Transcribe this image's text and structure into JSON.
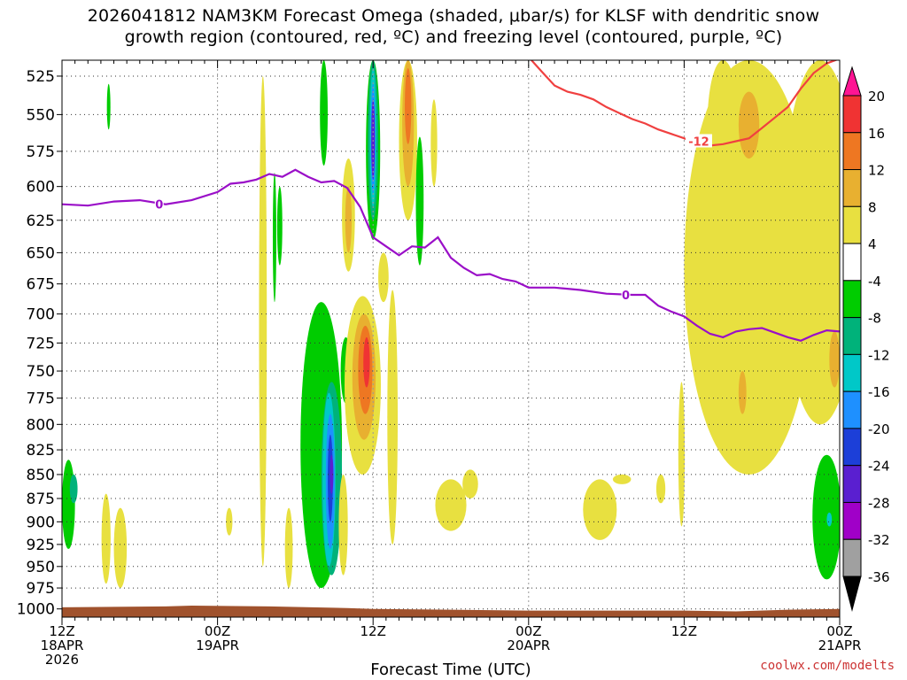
{
  "title": {
    "line1": "2026041812 NAM3KM Forecast Omega (shaded, μbar/s) for KLSF with dendritic snow",
    "line2": "growth region (contoured, red, ºC) and freezing level (contoured, purple, ºC)"
  },
  "credit": "coolwx.com/modelts",
  "chart_data": {
    "type": "time-height cross section",
    "xlabel": "Forecast Time (UTC)",
    "x_unit": "hours from 2026-04-18 12Z",
    "xlim": [
      0,
      60
    ],
    "x_ticks": [
      {
        "x": 0,
        "lines": [
          "12Z",
          "18APR",
          "2026"
        ]
      },
      {
        "x": 12,
        "lines": [
          "00Z",
          "19APR"
        ]
      },
      {
        "x": 24,
        "lines": [
          "12Z"
        ]
      },
      {
        "x": 36,
        "lines": [
          "00Z",
          "20APR"
        ]
      },
      {
        "x": 48,
        "lines": [
          "12Z"
        ]
      },
      {
        "x": 60,
        "lines": [
          "00Z",
          "21APR"
        ]
      }
    ],
    "y_unit": "hPa",
    "ylim": [
      1010,
      515
    ],
    "y_ticks": [
      525,
      550,
      575,
      600,
      625,
      650,
      675,
      700,
      725,
      750,
      775,
      800,
      825,
      850,
      875,
      900,
      925,
      950,
      975,
      1000
    ],
    "grid": true,
    "colorbar": {
      "label_values": [
        20,
        16,
        12,
        8,
        4,
        -4,
        -8,
        -12,
        -16,
        -20,
        -24,
        -28,
        -32,
        -36
      ],
      "bins": [
        {
          "range": [
            20,
            24
          ],
          "color": "#ff1493"
        },
        {
          "range": [
            16,
            20
          ],
          "color": "#f03333"
        },
        {
          "range": [
            12,
            16
          ],
          "color": "#ee7722"
        },
        {
          "range": [
            8,
            12
          ],
          "color": "#e8b030"
        },
        {
          "range": [
            4,
            8
          ],
          "color": "#e8e040"
        },
        {
          "range": [
            -4,
            4
          ],
          "color": "#ffffff"
        },
        {
          "range": [
            -8,
            -4
          ],
          "color": "#00cc00"
        },
        {
          "range": [
            -12,
            -8
          ],
          "color": "#00b27a"
        },
        {
          "range": [
            -16,
            -12
          ],
          "color": "#00c8c8"
        },
        {
          "range": [
            -20,
            -16
          ],
          "color": "#1e90ff"
        },
        {
          "range": [
            -24,
            -20
          ],
          "color": "#1c3fd8"
        },
        {
          "range": [
            -28,
            -24
          ],
          "color": "#5a1fd0"
        },
        {
          "range": [
            -32,
            -28
          ],
          "color": "#a000c8"
        },
        {
          "range": [
            -36,
            -32
          ],
          "color": "#a0a0a0"
        },
        {
          "range": [
            -40,
            -36
          ],
          "color": "#000000"
        }
      ]
    },
    "omega_regions": [
      {
        "x": 0.5,
        "p": [
          930,
          835
        ],
        "w": 0.5,
        "v": -6
      },
      {
        "x": 0.9,
        "p": [
          880,
          850
        ],
        "w": 0.3,
        "v": -8
      },
      {
        "x": 3.6,
        "p": [
          560,
          530
        ],
        "w": 0.12,
        "v": -6
      },
      {
        "x": 3.4,
        "p": [
          970,
          870
        ],
        "w": 0.35,
        "v": 5
      },
      {
        "x": 4.5,
        "p": [
          975,
          885
        ],
        "w": 0.5,
        "v": 5
      },
      {
        "x": 12.9,
        "p": [
          915,
          885
        ],
        "w": 0.25,
        "v": 5
      },
      {
        "x": 15.5,
        "p": [
          950,
          525
        ],
        "w": 0.3,
        "v": 5
      },
      {
        "x": 16.4,
        "p": [
          690,
          590
        ],
        "w": 0.1,
        "v": -6
      },
      {
        "x": 16.8,
        "p": [
          660,
          600
        ],
        "w": 0.2,
        "v": -6
      },
      {
        "x": 17.5,
        "p": [
          975,
          885
        ],
        "w": 0.3,
        "v": 5
      },
      {
        "x": 20.0,
        "p": [
          975,
          690
        ],
        "w": 1.6,
        "v": -6
      },
      {
        "x": 20.8,
        "p": [
          960,
          760
        ],
        "w": 0.8,
        "v": -8
      },
      {
        "x": 20.6,
        "p": [
          950,
          770
        ],
        "w": 0.5,
        "v": -12
      },
      {
        "x": 20.7,
        "p": [
          930,
          790
        ],
        "w": 0.35,
        "v": -16
      },
      {
        "x": 20.7,
        "p": [
          900,
          810
        ],
        "w": 0.2,
        "v": -20
      },
      {
        "x": 20.8,
        "p": [
          870,
          830
        ],
        "w": 0.12,
        "v": -24
      },
      {
        "x": 21.7,
        "p": [
          960,
          850
        ],
        "w": 0.35,
        "v": 5
      },
      {
        "x": 20.2,
        "p": [
          585,
          515
        ],
        "w": 0.3,
        "v": -6
      },
      {
        "x": 22.1,
        "p": [
          665,
          580
        ],
        "w": 0.5,
        "v": 5
      },
      {
        "x": 22.1,
        "p": [
          650,
          600
        ],
        "w": 0.25,
        "v": 9
      },
      {
        "x": 21.9,
        "p": [
          780,
          720
        ],
        "w": 0.4,
        "v": -6
      },
      {
        "x": 23.2,
        "p": [
          850,
          685
        ],
        "w": 1.4,
        "v": 5
      },
      {
        "x": 23.3,
        "p": [
          815,
          700
        ],
        "w": 0.9,
        "v": 9
      },
      {
        "x": 23.4,
        "p": [
          790,
          710
        ],
        "w": 0.55,
        "v": 13
      },
      {
        "x": 23.5,
        "p": [
          765,
          720
        ],
        "w": 0.25,
        "v": 17
      },
      {
        "x": 24.0,
        "p": [
          640,
          515
        ],
        "w": 0.55,
        "v": -6
      },
      {
        "x": 24.0,
        "p": [
          625,
          515
        ],
        "w": 0.4,
        "v": -8
      },
      {
        "x": 24.0,
        "p": [
          615,
          520
        ],
        "w": 0.25,
        "v": -12
      },
      {
        "x": 24.0,
        "p": [
          605,
          530
        ],
        "w": 0.18,
        "v": -16
      },
      {
        "x": 24.0,
        "p": [
          595,
          540
        ],
        "w": 0.12,
        "v": -24
      },
      {
        "x": 24.8,
        "p": [
          690,
          650
        ],
        "w": 0.4,
        "v": 5
      },
      {
        "x": 25.5,
        "p": [
          925,
          680
        ],
        "w": 0.4,
        "v": 5
      },
      {
        "x": 26.7,
        "p": [
          625,
          515
        ],
        "w": 0.7,
        "v": 5
      },
      {
        "x": 26.7,
        "p": [
          600,
          515
        ],
        "w": 0.45,
        "v": 9
      },
      {
        "x": 26.7,
        "p": [
          570,
          520
        ],
        "w": 0.25,
        "v": 15
      },
      {
        "x": 27.6,
        "p": [
          660,
          565
        ],
        "w": 0.3,
        "v": -6
      },
      {
        "x": 28.7,
        "p": [
          600,
          540
        ],
        "w": 0.25,
        "v": 5
      },
      {
        "x": 30.0,
        "p": [
          910,
          855
        ],
        "w": 1.2,
        "v": 5
      },
      {
        "x": 31.5,
        "p": [
          875,
          845
        ],
        "w": 0.6,
        "v": 5
      },
      {
        "x": 41.5,
        "p": [
          920,
          855
        ],
        "w": 1.3,
        "v": 5
      },
      {
        "x": 43.2,
        "p": [
          860,
          850
        ],
        "w": 0.7,
        "v": 5
      },
      {
        "x": 46.2,
        "p": [
          880,
          850
        ],
        "w": 0.35,
        "v": 5
      },
      {
        "x": 47.8,
        "p": [
          905,
          760
        ],
        "w": 0.25,
        "v": 5
      },
      {
        "x": 53.0,
        "p": [
          850,
          515
        ],
        "w": 5.0,
        "v": 5
      },
      {
        "x": 58.5,
        "p": [
          800,
          515
        ],
        "w": 3.0,
        "v": 5
      },
      {
        "x": 51.0,
        "p": [
          600,
          515
        ],
        "w": 1.2,
        "v": 5
      },
      {
        "x": 53.0,
        "p": [
          580,
          535
        ],
        "w": 0.8,
        "v": 9
      },
      {
        "x": 52.5,
        "p": [
          790,
          750
        ],
        "w": 0.3,
        "v": 9
      },
      {
        "x": 59.6,
        "p": [
          765,
          715
        ],
        "w": 0.4,
        "v": 9
      },
      {
        "x": 59.0,
        "p": [
          965,
          830
        ],
        "w": 1.1,
        "v": -6
      },
      {
        "x": 59.2,
        "p": [
          905,
          890
        ],
        "w": 0.2,
        "v": -12
      }
    ],
    "freezing_level": {
      "label": "0",
      "label_at": [
        [
          7.5,
          613
        ],
        [
          43.5,
          684
        ]
      ],
      "x": [
        0,
        2,
        4,
        6,
        8,
        10,
        12,
        13,
        14,
        15,
        16,
        17,
        18,
        19,
        20,
        21,
        22,
        23,
        24,
        25,
        26,
        27,
        28,
        29,
        30,
        31,
        32,
        33,
        34,
        35,
        36,
        38,
        40,
        42,
        44,
        45,
        46,
        47,
        48,
        49,
        50,
        51,
        52,
        53,
        54,
        55,
        56,
        57,
        58,
        59,
        60
      ],
      "p": [
        613,
        614,
        611,
        610,
        613,
        610,
        604,
        598,
        597,
        595,
        591,
        593,
        588,
        593,
        597,
        596,
        601,
        615,
        638,
        645,
        652,
        645,
        646,
        638,
        654,
        662,
        668,
        667,
        671,
        673,
        678,
        678,
        680,
        683,
        684,
        684,
        693,
        698,
        702,
        710,
        717,
        720,
        715,
        713,
        712,
        716,
        720,
        723,
        718,
        714,
        715
      ]
    },
    "dgz_isotherm": {
      "label": "-12",
      "label_pos": [
        49.2,
        568
      ],
      "x": [
        36,
        37,
        38,
        39,
        40,
        41,
        42,
        43,
        44,
        45,
        46,
        47,
        48,
        49,
        50,
        51,
        52,
        53,
        54,
        55,
        56,
        57,
        58,
        59,
        60
      ],
      "p": [
        513,
        522,
        531,
        535,
        537,
        540,
        545,
        549,
        553,
        556,
        560,
        563,
        566,
        570,
        571,
        570,
        568,
        566,
        559,
        552,
        545,
        533,
        523,
        517,
        514
      ]
    },
    "surface": {
      "x": [
        0,
        8,
        10,
        16,
        22,
        24,
        30,
        36,
        42,
        48,
        52,
        56,
        60
      ],
      "p": [
        998,
        997,
        996,
        997,
        999,
        1000,
        1001,
        1002,
        1002,
        1002,
        1003,
        1001,
        1000
      ],
      "color": "#a0522d"
    }
  }
}
